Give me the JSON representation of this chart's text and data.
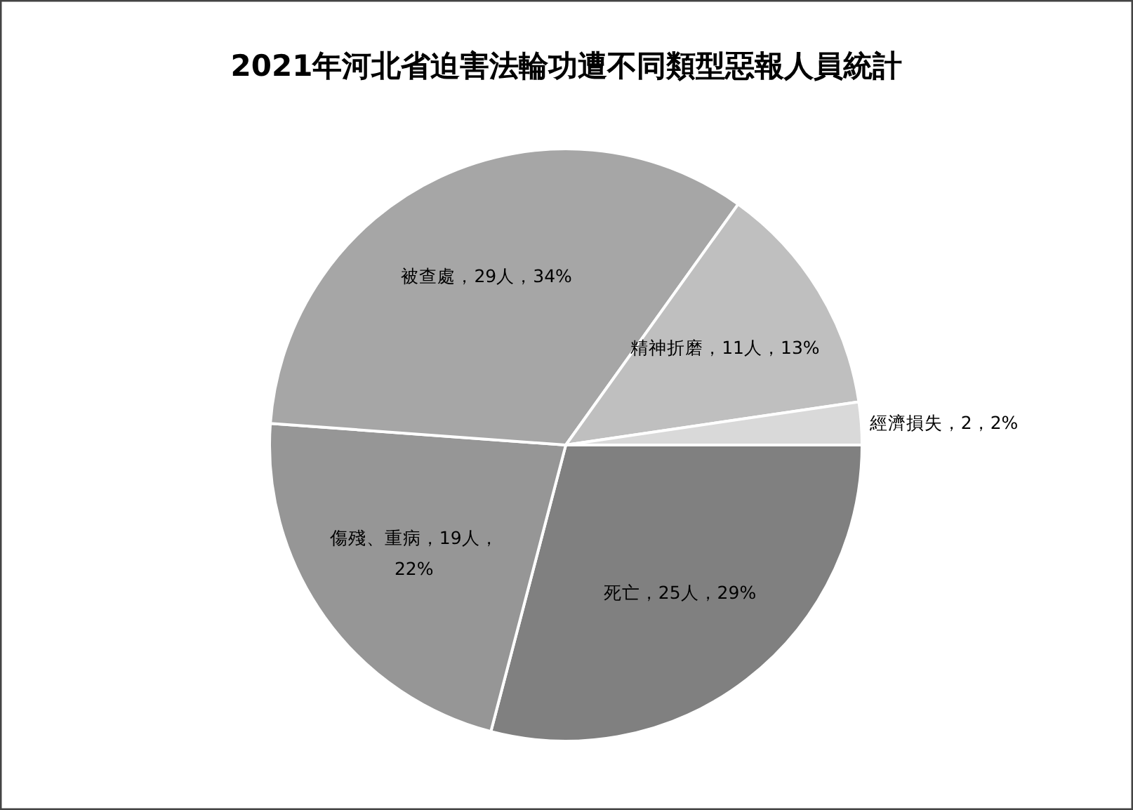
{
  "chart_data": {
    "type": "pie",
    "title": "2021年河北省迫害法輪功遭不同類型惡報人員統計",
    "categories": [
      "死亡",
      "傷殘、重病",
      "被查處",
      "精神折磨",
      "經濟損失"
    ],
    "values": [
      25,
      19,
      29,
      11,
      2
    ],
    "value_labels": [
      "25人，29%",
      "19人，22%",
      "29人，34%",
      "11人，13%",
      "2，2%"
    ],
    "colors": [
      "#808080",
      "#969696",
      "#a6a6a6",
      "#bfbfbf",
      "#d9d9d9"
    ]
  }
}
